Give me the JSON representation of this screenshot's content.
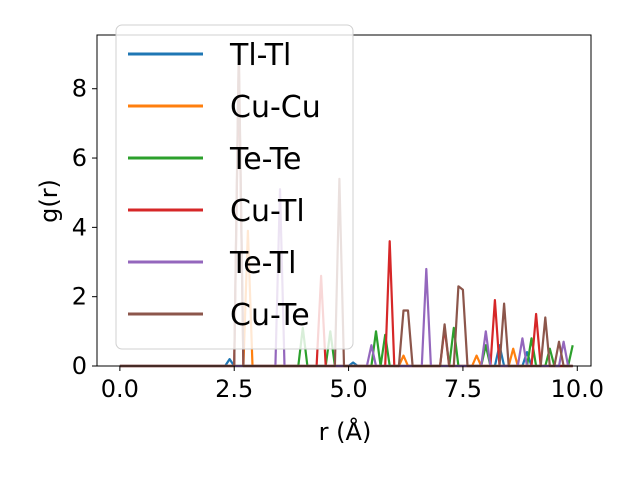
{
  "chart_data": {
    "type": "line",
    "xlabel": "r (Å)",
    "ylabel": "g(r)",
    "xlim": [
      -0.5,
      10.3
    ],
    "ylim": [
      0,
      9.55
    ],
    "xticks": [
      0.0,
      2.5,
      5.0,
      7.5,
      10.0
    ],
    "xtick_labels": [
      "0.0",
      "2.5",
      "5.0",
      "7.5",
      "10.0"
    ],
    "yticks": [
      0,
      2,
      4,
      6,
      8
    ],
    "ytick_labels": [
      "0",
      "2",
      "4",
      "6",
      "8"
    ],
    "grid": false,
    "legend_position": "top-left",
    "series": [
      {
        "name": "Tl-Tl",
        "color": "#1f77b4",
        "points": [
          [
            0.0,
            0
          ],
          [
            2.3,
            0
          ],
          [
            2.4,
            0.2
          ],
          [
            2.5,
            0
          ],
          [
            5.0,
            0
          ],
          [
            5.1,
            0.1
          ],
          [
            5.2,
            0
          ],
          [
            8.2,
            0
          ],
          [
            8.3,
            0.6
          ],
          [
            8.4,
            0
          ],
          [
            8.8,
            0
          ],
          [
            8.9,
            0.4
          ],
          [
            9.0,
            0
          ],
          [
            9.9,
            0
          ]
        ]
      },
      {
        "name": "Cu-Cu",
        "color": "#ff7f0e",
        "points": [
          [
            0.0,
            0
          ],
          [
            2.7,
            0
          ],
          [
            2.8,
            3.9
          ],
          [
            2.9,
            0
          ],
          [
            6.1,
            0
          ],
          [
            6.2,
            0.3
          ],
          [
            6.3,
            0
          ],
          [
            7.7,
            0
          ],
          [
            7.8,
            0.3
          ],
          [
            7.9,
            0
          ],
          [
            8.5,
            0
          ],
          [
            8.6,
            0.5
          ],
          [
            8.7,
            0
          ],
          [
            9.9,
            0
          ]
        ]
      },
      {
        "name": "Te-Te",
        "color": "#2ca02c",
        "points": [
          [
            0.0,
            0
          ],
          [
            3.9,
            0
          ],
          [
            4.0,
            1.1
          ],
          [
            4.1,
            0
          ],
          [
            4.5,
            0
          ],
          [
            4.6,
            1.0
          ],
          [
            4.7,
            0
          ],
          [
            5.5,
            0
          ],
          [
            5.6,
            1.0
          ],
          [
            5.7,
            0
          ],
          [
            5.8,
            0.9
          ],
          [
            5.9,
            0
          ],
          [
            7.2,
            0
          ],
          [
            7.3,
            1.1
          ],
          [
            7.4,
            0
          ],
          [
            7.9,
            0
          ],
          [
            8.0,
            0.6
          ],
          [
            8.1,
            0
          ],
          [
            8.9,
            0
          ],
          [
            9.0,
            0.8
          ],
          [
            9.1,
            0
          ],
          [
            9.3,
            0
          ],
          [
            9.4,
            0.5
          ],
          [
            9.5,
            0
          ],
          [
            9.8,
            0
          ],
          [
            9.9,
            0.6
          ]
        ]
      },
      {
        "name": "Cu-Tl",
        "color": "#d62728",
        "points": [
          [
            0.0,
            0
          ],
          [
            2.5,
            0
          ],
          [
            2.6,
            8.8
          ],
          [
            2.7,
            0
          ],
          [
            4.3,
            0
          ],
          [
            4.4,
            2.6
          ],
          [
            4.5,
            0
          ],
          [
            5.8,
            0
          ],
          [
            5.9,
            3.6
          ],
          [
            6.0,
            0
          ],
          [
            7.0,
            0
          ],
          [
            7.1,
            1.1
          ],
          [
            7.2,
            0
          ],
          [
            8.1,
            0
          ],
          [
            8.2,
            1.9
          ],
          [
            8.3,
            0
          ],
          [
            9.0,
            0
          ],
          [
            9.1,
            1.5
          ],
          [
            9.2,
            0
          ],
          [
            9.9,
            0
          ]
        ]
      },
      {
        "name": "Te-Tl",
        "color": "#9467bd",
        "points": [
          [
            0.0,
            0
          ],
          [
            3.4,
            0
          ],
          [
            3.5,
            5.1
          ],
          [
            3.6,
            0
          ],
          [
            5.4,
            0
          ],
          [
            5.5,
            0.6
          ],
          [
            5.6,
            0
          ],
          [
            6.6,
            0
          ],
          [
            6.7,
            2.8
          ],
          [
            6.8,
            0
          ],
          [
            7.9,
            0
          ],
          [
            8.0,
            1.0
          ],
          [
            8.1,
            0
          ],
          [
            8.7,
            0
          ],
          [
            8.8,
            0.8
          ],
          [
            8.9,
            0
          ],
          [
            9.6,
            0
          ],
          [
            9.7,
            0.7
          ],
          [
            9.8,
            0
          ],
          [
            9.9,
            0
          ]
        ]
      },
      {
        "name": "Cu-Te",
        "color": "#8c564b",
        "points": [
          [
            0.0,
            0
          ],
          [
            2.5,
            0
          ],
          [
            2.6,
            9.2
          ],
          [
            2.7,
            0
          ],
          [
            4.7,
            0
          ],
          [
            4.8,
            5.4
          ],
          [
            4.9,
            0
          ],
          [
            6.1,
            0
          ],
          [
            6.2,
            1.6
          ],
          [
            6.3,
            1.6
          ],
          [
            6.4,
            0
          ],
          [
            7.0,
            0
          ],
          [
            7.1,
            1.2
          ],
          [
            7.2,
            0
          ],
          [
            7.3,
            0
          ],
          [
            7.4,
            2.3
          ],
          [
            7.5,
            2.2
          ],
          [
            7.6,
            0
          ],
          [
            8.3,
            0
          ],
          [
            8.4,
            1.8
          ],
          [
            8.5,
            0
          ],
          [
            9.2,
            0
          ],
          [
            9.3,
            1.4
          ],
          [
            9.4,
            0
          ],
          [
            9.5,
            0
          ],
          [
            9.6,
            0.7
          ],
          [
            9.7,
            0
          ],
          [
            9.9,
            0
          ]
        ]
      }
    ]
  }
}
